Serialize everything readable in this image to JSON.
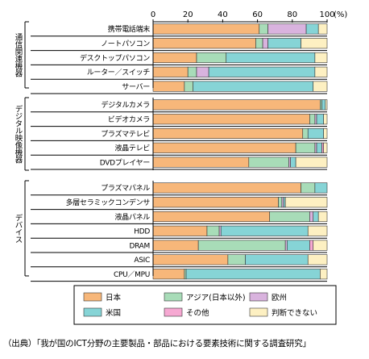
{
  "chart_data": {
    "type": "bar",
    "orientation": "horizontal",
    "stacked": true,
    "percent_scale": true,
    "x_ticks": [
      0,
      20,
      40,
      60,
      80,
      100
    ],
    "x_unit_label": "(%)",
    "xlim": [
      0,
      100
    ],
    "groups": [
      {
        "name": "通信関連機器",
        "categories": [
          "携帯電話端末",
          "ノートパソコン",
          "デスクトップパソコン",
          "ルーター／スイッチ",
          "サーバー"
        ]
      },
      {
        "name": "デジタル映像機器",
        "categories": [
          "デジタルカメラ",
          "ビデオカメラ",
          "プラズマテレビ",
          "液晶テレビ",
          "DVDプレイヤー"
        ]
      },
      {
        "name": "デバイス",
        "categories": [
          "プラズマパネル",
          "多層セラミックコンデンサ",
          "液晶パネル",
          "HDD",
          "DRAM",
          "ASIC",
          "CPU／MPU"
        ]
      }
    ],
    "categories": [
      "携帯電話端末",
      "ノートパソコン",
      "デスクトップパソコン",
      "ルーター／スイッチ",
      "サーバー",
      "デジタルカメラ",
      "ビデオカメラ",
      "プラズマテレビ",
      "液晶テレビ",
      "DVDプレイヤー",
      "プラズマパネル",
      "多層セラミックコンデンサ",
      "液晶パネル",
      "HDD",
      "DRAM",
      "ASIC",
      "CPU／MPU"
    ],
    "series": [
      {
        "name": "日本",
        "color": "#f7b77a",
        "values": [
          61,
          59,
          25,
          20,
          18,
          96,
          90,
          86,
          82,
          55,
          85,
          72,
          67,
          31,
          26,
          43,
          18
        ]
      },
      {
        "name": "アジア(日本以外)",
        "color": "#a8dcb8",
        "values": [
          5,
          4,
          17,
          5,
          5,
          1,
          3,
          3,
          11,
          23,
          8,
          2,
          23,
          7,
          50,
          10,
          1
        ]
      },
      {
        "name": "欧州",
        "color": "#d9b3de",
        "values": [
          22,
          3,
          0,
          7,
          0,
          0,
          1,
          0,
          1,
          1,
          0,
          1,
          2,
          1,
          1,
          0,
          0
        ]
      },
      {
        "name": "米国",
        "color": "#86d4d6",
        "values": [
          7,
          19,
          51,
          61,
          69,
          2,
          4,
          9,
          3,
          3,
          7,
          1,
          3,
          50,
          13,
          36,
          77
        ]
      },
      {
        "name": "その他",
        "color": "#f6a8d2",
        "values": [
          0,
          0,
          0,
          0,
          0,
          0,
          0,
          0,
          1,
          0,
          0,
          0,
          0,
          0,
          2,
          0,
          0
        ]
      },
      {
        "name": "判断できない",
        "color": "#fdf0c2",
        "values": [
          5,
          15,
          7,
          7,
          8,
          1,
          2,
          2,
          2,
          18,
          0,
          24,
          5,
          11,
          8,
          11,
          4
        ]
      }
    ],
    "legend_placement": "bottom",
    "grid": false
  },
  "source_text": "（出典）「我が国のICT分野の主要製品・部品における要素技術に関する調査研究」"
}
